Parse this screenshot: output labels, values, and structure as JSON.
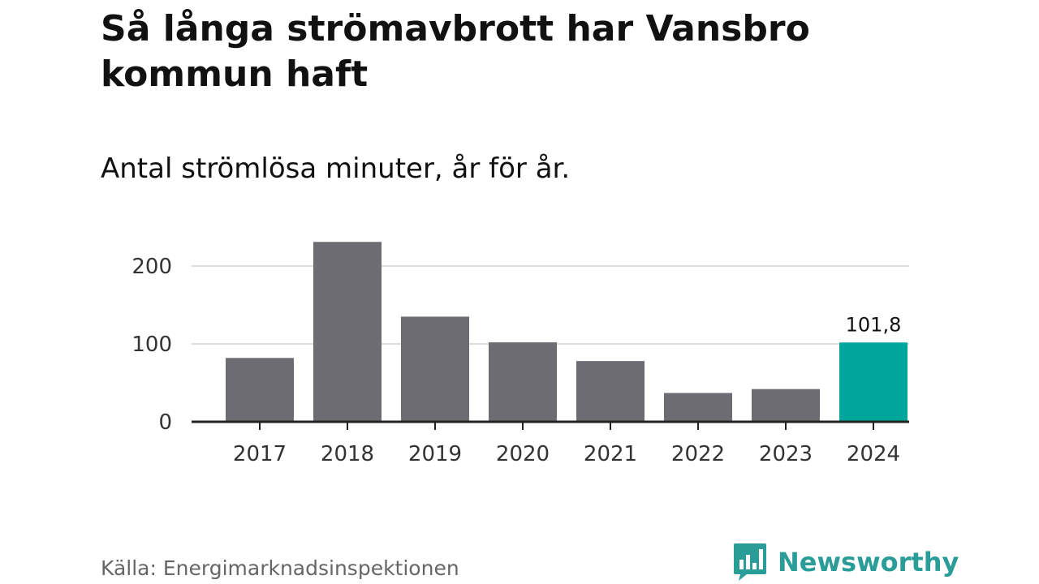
{
  "chart_data": {
    "type": "bar",
    "title": "Så långa strömavbrott har Vansbro kommun haft",
    "subtitle": "Antal strömlösa minuter, år för år.",
    "categories": [
      "2017",
      "2018",
      "2019",
      "2020",
      "2021",
      "2022",
      "2023",
      "2024"
    ],
    "values": [
      82,
      231,
      135,
      102,
      78,
      37,
      42,
      101.8
    ],
    "highlight_index": 7,
    "highlight_label": "101,8",
    "yticks": [
      0,
      100,
      200
    ],
    "ylim": [
      0,
      240
    ],
    "grid": true,
    "colors": {
      "bar": "#6d6c72",
      "highlight": "#00a59b",
      "grid": "#dddddd",
      "axis": "#222222"
    }
  },
  "source": "Källa: Energimarknadsinspektionen",
  "logo": {
    "text": "Newsworthy",
    "color": "#2a9d99",
    "icon": "bar-chart-speech-bubble-icon"
  }
}
